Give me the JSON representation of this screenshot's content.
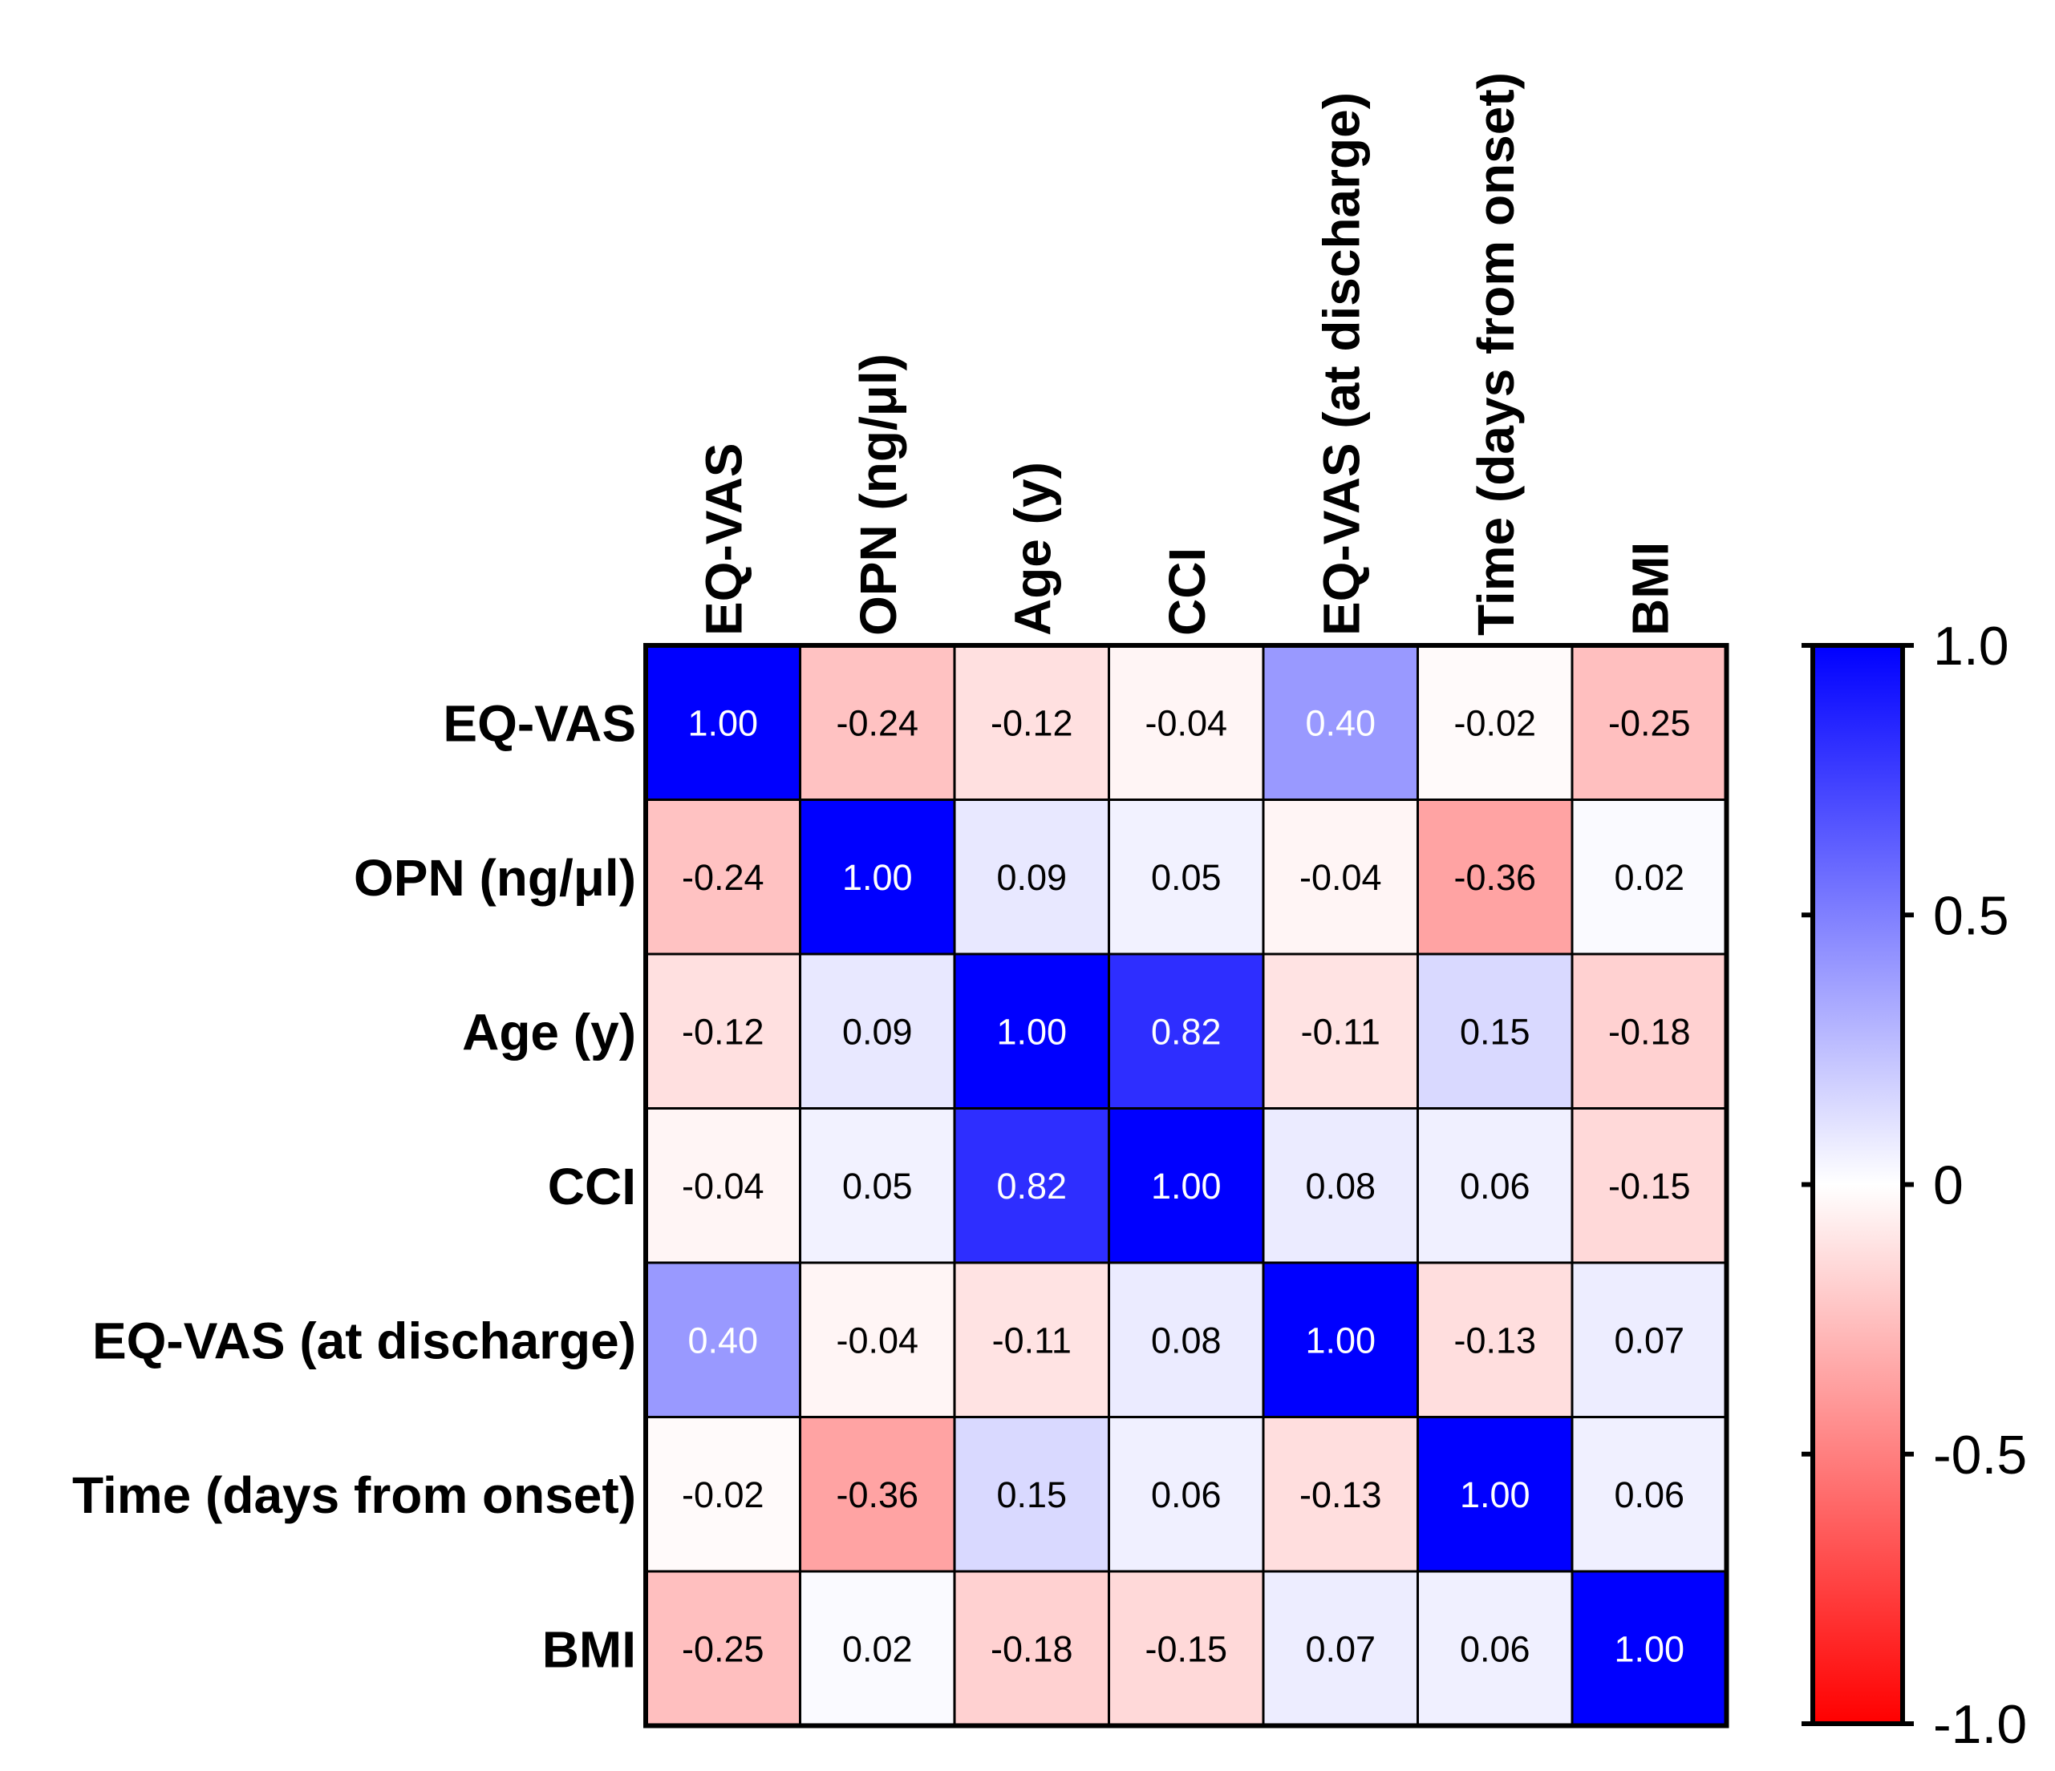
{
  "chart_data": {
    "type": "heatmap",
    "title": "",
    "row_labels": [
      "EQ-VAS",
      "OPN (ng/μl)",
      "Age (y)",
      "CCI",
      "EQ-VAS (at discharge)",
      "Time (days from onset)",
      "BMI"
    ],
    "col_labels": [
      "EQ-VAS",
      "OPN (ng/μl)",
      "Age (y)",
      "CCI",
      "EQ-VAS (at discharge)",
      "Time (days from onset)",
      "BMI"
    ],
    "values": [
      [
        1.0,
        -0.24,
        -0.12,
        -0.04,
        0.4,
        -0.02,
        -0.25
      ],
      [
        -0.24,
        1.0,
        0.09,
        0.05,
        -0.04,
        -0.36,
        0.02
      ],
      [
        -0.12,
        0.09,
        1.0,
        0.82,
        -0.11,
        0.15,
        -0.18
      ],
      [
        -0.04,
        0.05,
        0.82,
        1.0,
        0.08,
        0.06,
        -0.15
      ],
      [
        0.4,
        -0.04,
        -0.11,
        0.08,
        1.0,
        -0.13,
        0.07
      ],
      [
        -0.02,
        -0.36,
        0.15,
        0.06,
        -0.13,
        1.0,
        0.06
      ],
      [
        -0.25,
        0.02,
        -0.18,
        -0.15,
        0.07,
        0.06,
        1.0
      ]
    ],
    "cell_labels": [
      [
        "1.00",
        "-0.24",
        "-0.12",
        "-0.04",
        "0.40",
        "-0.02",
        "-0.25"
      ],
      [
        "-0.24",
        "1.00",
        "0.09",
        "0.05",
        "-0.04",
        "-0.36",
        "0.02"
      ],
      [
        "-0.12",
        "0.09",
        "1.00",
        "0.82",
        "-0.11",
        "0.15",
        "-0.18"
      ],
      [
        "-0.04",
        "0.05",
        "0.82",
        "1.00",
        "0.08",
        "0.06",
        "-0.15"
      ],
      [
        "0.40",
        "-0.04",
        "-0.11",
        "0.08",
        "1.00",
        "-0.13",
        "0.07"
      ],
      [
        "-0.02",
        "-0.36",
        "0.15",
        "0.06",
        "-0.13",
        "1.00",
        "0.06"
      ],
      [
        "-0.25",
        "0.02",
        "-0.18",
        "-0.15",
        "0.07",
        "0.06",
        "1.00"
      ]
    ],
    "colorbar": {
      "range": [
        -1.0,
        1.0
      ],
      "ticks": [
        {
          "value": 1.0,
          "label": "1.0"
        },
        {
          "value": 0.5,
          "label": "0.5"
        },
        {
          "value": 0,
          "label": "0"
        },
        {
          "value": -0.5,
          "label": "-0.5"
        },
        {
          "value": -1.0,
          "label": "-1.0"
        }
      ],
      "colors": {
        "negative": "#ff0000",
        "zero": "#ffffff",
        "positive": "#0000ff"
      }
    },
    "text_colors": {
      "light": "#ffffff",
      "dark": "#000000"
    }
  }
}
